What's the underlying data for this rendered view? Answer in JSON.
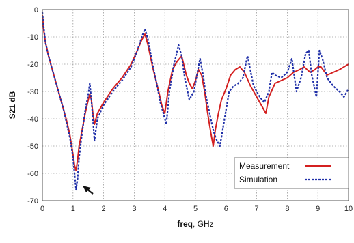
{
  "chart_data": {
    "type": "line",
    "title": "",
    "xlabel": "freq, GHz",
    "xlabel_bold": "freq",
    "xlabel_rest": ", GHz",
    "ylabel": "S21 dB",
    "xlim": [
      0,
      10
    ],
    "ylim": [
      -70,
      0
    ],
    "xticks": [
      "0",
      "1",
      "2",
      "3",
      "4",
      "5",
      "6",
      "7",
      "8",
      "9",
      "10"
    ],
    "yticks": [
      "0",
      "-10",
      "-20",
      "-30",
      "-40",
      "-50",
      "-60",
      "-70"
    ],
    "grid": true,
    "legend": "bottom-right",
    "series": [
      {
        "name": "Measurement",
        "color": "#d42020",
        "style": "solid",
        "x": [
          0.0,
          0.05,
          0.1,
          0.2,
          0.3,
          0.4,
          0.5,
          0.6,
          0.7,
          0.8,
          0.9,
          1.0,
          1.05,
          1.1,
          1.15,
          1.2,
          1.3,
          1.4,
          1.5,
          1.55,
          1.6,
          1.65,
          1.7,
          1.8,
          2.0,
          2.3,
          2.6,
          2.9,
          3.1,
          3.25,
          3.35,
          3.45,
          3.6,
          3.8,
          3.9,
          4.0,
          4.1,
          4.25,
          4.4,
          4.55,
          4.7,
          4.8,
          4.9,
          5.0,
          5.1,
          5.2,
          5.3,
          5.4,
          5.5,
          5.58,
          5.65,
          5.75,
          5.85,
          6.0,
          6.15,
          6.3,
          6.45,
          6.6,
          6.8,
          7.0,
          7.2,
          7.3,
          7.4,
          7.6,
          7.8,
          8.0,
          8.2,
          8.4,
          8.55,
          8.65,
          8.75,
          8.9,
          9.0,
          9.1,
          9.3,
          9.5,
          9.7,
          9.85,
          10.0
        ],
        "y": [
          -2,
          -8,
          -12,
          -17,
          -21,
          -25,
          -29,
          -33,
          -37,
          -41,
          -46,
          -53,
          -57,
          -59,
          -55,
          -50,
          -44,
          -38,
          -33,
          -31,
          -33,
          -38,
          -42,
          -38,
          -34,
          -29,
          -25,
          -20,
          -15,
          -11,
          -9,
          -13,
          -21,
          -30,
          -35,
          -38,
          -30,
          -22,
          -19,
          -17,
          -24,
          -27,
          -29,
          -26,
          -22,
          -24,
          -30,
          -38,
          -45,
          -50,
          -44,
          -38,
          -33,
          -29,
          -24,
          -22,
          -21,
          -23,
          -28,
          -32,
          -36,
          -38,
          -32,
          -27,
          -26,
          -25,
          -23,
          -22,
          -21,
          -22,
          -23,
          -22,
          -21,
          -21,
          -24,
          -23,
          -22,
          -21,
          -20
        ]
      },
      {
        "name": "Simulation",
        "color": "#1f2fa8",
        "style": "dashed",
        "x": [
          0.0,
          0.05,
          0.1,
          0.2,
          0.3,
          0.4,
          0.5,
          0.6,
          0.7,
          0.8,
          0.9,
          1.0,
          1.05,
          1.1,
          1.15,
          1.2,
          1.3,
          1.4,
          1.5,
          1.55,
          1.6,
          1.65,
          1.7,
          1.8,
          2.0,
          2.3,
          2.6,
          2.9,
          3.1,
          3.25,
          3.35,
          3.45,
          3.6,
          3.75,
          3.85,
          3.95,
          4.05,
          4.15,
          4.3,
          4.45,
          4.55,
          4.65,
          4.8,
          4.95,
          5.05,
          5.15,
          5.25,
          5.35,
          5.5,
          5.6,
          5.7,
          5.8,
          5.95,
          6.1,
          6.25,
          6.4,
          6.55,
          6.7,
          6.9,
          7.1,
          7.25,
          7.4,
          7.5,
          7.6,
          7.8,
          8.0,
          8.15,
          8.3,
          8.45,
          8.6,
          8.7,
          8.8,
          8.95,
          9.05,
          9.15,
          9.3,
          9.5,
          9.7,
          9.85,
          10.0
        ],
        "y": [
          -1,
          -7,
          -12,
          -17,
          -21,
          -25,
          -29,
          -33,
          -37,
          -42,
          -47,
          -54,
          -60,
          -66,
          -62,
          -54,
          -45,
          -37,
          -31,
          -27,
          -33,
          -40,
          -48,
          -40,
          -35,
          -30,
          -26,
          -21,
          -15,
          -10,
          -7,
          -11,
          -20,
          -28,
          -34,
          -38,
          -42,
          -30,
          -20,
          -13,
          -17,
          -25,
          -33,
          -30,
          -24,
          -18,
          -24,
          -32,
          -40,
          -45,
          -48,
          -50,
          -40,
          -30,
          -28,
          -27,
          -25,
          -17,
          -28,
          -32,
          -34,
          -30,
          -23,
          -24,
          -25,
          -23,
          -18,
          -30,
          -25,
          -16,
          -15,
          -24,
          -32,
          -15,
          -18,
          -25,
          -28,
          -30,
          -32,
          -29
        ]
      }
    ]
  }
}
